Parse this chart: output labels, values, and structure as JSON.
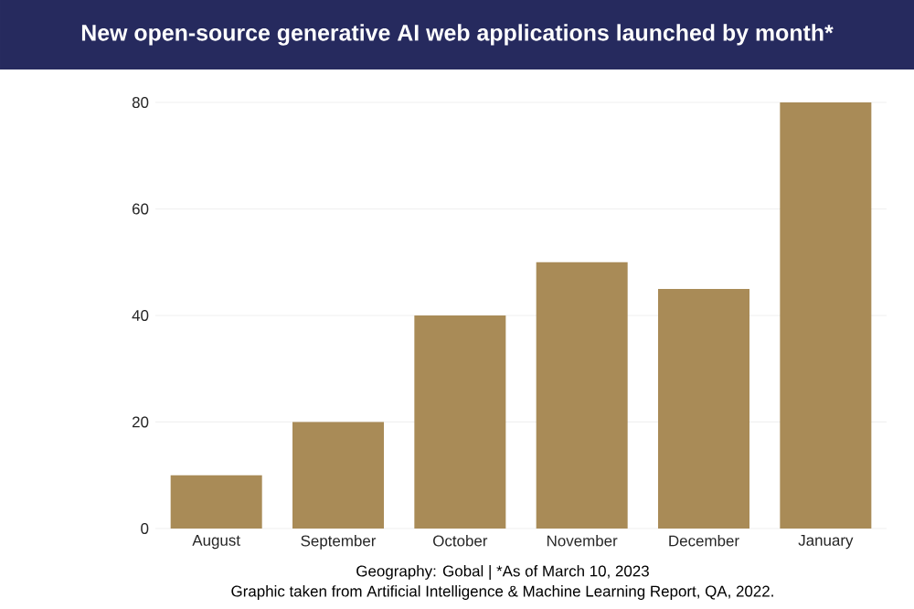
{
  "chart_data": {
    "type": "bar",
    "title": "New open-source generative AI web applications launched by month*",
    "categories": [
      "August",
      "September",
      "October",
      "November",
      "December",
      "January"
    ],
    "values": [
      10,
      20,
      40,
      50,
      45,
      80
    ],
    "color": "#a98b57",
    "ylim": [
      0,
      80
    ],
    "yticks": [
      0,
      20,
      40,
      60,
      80
    ],
    "grid": "y",
    "annotations": [
      "Geography: Gobal | *As of March 10, 2023",
      "Graphic taken from Artificial Intelligence & Machine Learning Report, QA, 2022."
    ]
  }
}
